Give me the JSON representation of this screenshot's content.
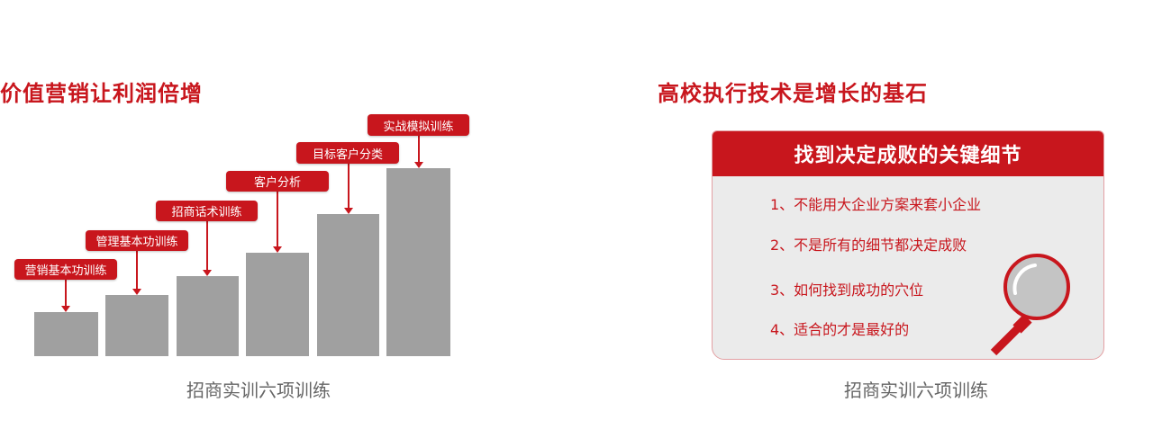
{
  "left": {
    "title": "价值营销让利润倍增",
    "steps": [
      {
        "label": "营销基本功训练"
      },
      {
        "label": "管理基本功训练"
      },
      {
        "label": "招商话术训练"
      },
      {
        "label": "客户分析"
      },
      {
        "label": "目标客户分类"
      },
      {
        "label": "实战模拟训练"
      }
    ],
    "caption": "招商实训六项训练"
  },
  "right": {
    "title": "高校执行技术是增长的基石",
    "panel_title": "找到决定成败的关键细节",
    "items": [
      "1、不能用大企业方案来套小企业",
      "2、不是所有的细节都决定成败",
      "3、如何找到成功的穴位",
      "4、适合的才是最好的"
    ],
    "icon": "magnifier-icon",
    "caption": "招商实训六项训练"
  },
  "colors": {
    "accent": "#c8161d",
    "bar": "#a0a0a0",
    "panel": "#ebebeb",
    "caption": "#666666"
  }
}
